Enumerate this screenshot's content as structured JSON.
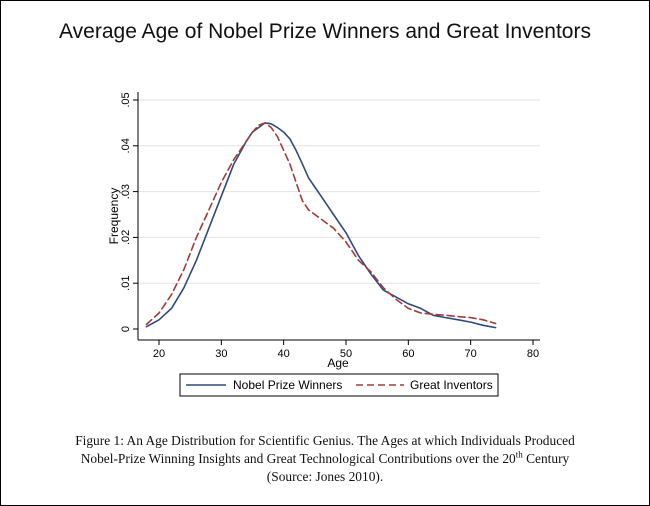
{
  "chart_data": {
    "type": "line",
    "title": "Average Age of Nobel Prize Winners and Great Inventors",
    "xlabel": "Age",
    "ylabel": "Frequency",
    "xlim": [
      18,
      80
    ],
    "ylim": [
      0,
      0.05
    ],
    "xticks": [
      "20",
      "30",
      "40",
      "50",
      "60",
      "70",
      "80"
    ],
    "yticks": [
      "0",
      ".01",
      ".02",
      ".03",
      ".04",
      ".05"
    ],
    "grid": "horizontal",
    "legend_position": "bottom",
    "series": [
      {
        "name": "Nobel Prize Winners",
        "color": "#2f4b7c",
        "dash": "solid",
        "x": [
          18,
          20,
          22,
          24,
          26,
          28,
          30,
          32,
          34,
          35,
          36,
          37,
          38,
          39,
          40,
          41,
          42,
          43,
          44,
          45,
          46,
          47,
          48,
          50,
          52,
          54,
          56,
          58,
          60,
          62,
          64,
          66,
          68,
          70,
          72,
          74
        ],
        "y": [
          0.0005,
          0.002,
          0.0045,
          0.009,
          0.015,
          0.022,
          0.029,
          0.036,
          0.041,
          0.043,
          0.044,
          0.045,
          0.0448,
          0.044,
          0.043,
          0.0415,
          0.039,
          0.036,
          0.033,
          0.031,
          0.029,
          0.027,
          0.025,
          0.021,
          0.016,
          0.012,
          0.0085,
          0.007,
          0.0055,
          0.0045,
          0.003,
          0.0025,
          0.002,
          0.0015,
          0.0008,
          0.0003
        ]
      },
      {
        "name": "Great Inventors",
        "color": "#a63a3a",
        "dash": "dashed",
        "x": [
          18,
          20,
          22,
          24,
          26,
          28,
          30,
          32,
          34,
          35,
          36,
          37,
          38,
          39,
          40,
          41,
          42,
          43,
          44,
          45,
          46,
          47,
          48,
          50,
          52,
          54,
          56,
          58,
          60,
          62,
          64,
          66,
          68,
          70,
          72,
          74
        ],
        "y": [
          0.001,
          0.0035,
          0.0075,
          0.013,
          0.02,
          0.026,
          0.032,
          0.037,
          0.041,
          0.043,
          0.0445,
          0.045,
          0.044,
          0.042,
          0.039,
          0.036,
          0.032,
          0.028,
          0.026,
          0.025,
          0.024,
          0.023,
          0.022,
          0.019,
          0.015,
          0.0125,
          0.009,
          0.0065,
          0.0045,
          0.0035,
          0.0032,
          0.003,
          0.0027,
          0.0025,
          0.002,
          0.0012
        ]
      }
    ]
  },
  "caption": {
    "line1": "Figure 1:  An Age Distribution for Scientific Genius.  The Ages at which Individuals Produced",
    "line2_before_sup": "Nobel-Prize Winning Insights and Great Technological Contributions over the 20",
    "line2_sup": "th",
    "line2_after_sup": " Century",
    "line3": "(Source: Jones 2010)."
  }
}
